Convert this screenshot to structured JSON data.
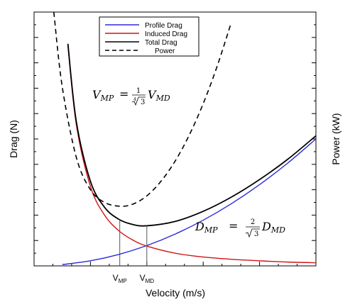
{
  "chart_data": {
    "type": "line",
    "xlabel": "Velocity (m/s)",
    "ylabel_left": "Drag (N)",
    "ylabel_right": "Power (kW)",
    "xlim": [
      0,
      10
    ],
    "ylim": [
      0,
      10
    ],
    "grid": false,
    "legend_position": "top-center",
    "series": [
      {
        "name": "Profile Drag",
        "color": "#2b2bd6",
        "style": "solid",
        "x": [
          1,
          2,
          3,
          4,
          5,
          6,
          7,
          8,
          9,
          10
        ],
        "values": [
          0.05,
          0.2,
          0.45,
          0.8,
          1.25,
          1.8,
          2.45,
          3.2,
          4.05,
          5.0
        ]
      },
      {
        "name": "Induced Drag",
        "color": "#d11414",
        "style": "solid",
        "x": [
          1.2,
          1.5,
          2,
          2.5,
          3,
          3.5,
          4,
          5,
          6,
          7,
          8,
          9,
          10
        ],
        "values": [
          8.68,
          5.56,
          3.13,
          2.0,
          1.39,
          1.02,
          0.78,
          0.5,
          0.35,
          0.26,
          0.2,
          0.15,
          0.125
        ]
      },
      {
        "name": "Total Drag",
        "color": "#000000",
        "style": "solid",
        "x": [
          1.2,
          1.5,
          2,
          2.5,
          3,
          3.5,
          4,
          5,
          6,
          7,
          8,
          9,
          10
        ],
        "values": [
          8.75,
          5.67,
          3.33,
          2.31,
          1.84,
          1.63,
          1.58,
          1.75,
          2.15,
          2.71,
          3.4,
          4.2,
          5.125
        ]
      },
      {
        "name": "Power",
        "color": "#000000",
        "style": "dashed",
        "x": [
          0.7,
          1.0,
          1.5,
          2.0,
          2.5,
          3.04,
          3.5,
          4.0,
          4.5,
          5.0,
          5.5,
          6.0,
          6.5,
          7.0
        ],
        "values": [
          10.0,
          7.05,
          4.27,
          3.0,
          2.5,
          2.35,
          2.43,
          2.76,
          3.33,
          4.12,
          5.14,
          6.39,
          7.88,
          9.6
        ]
      }
    ],
    "markers": [
      {
        "label": "V",
        "sub": "MP",
        "x": 3.04
      },
      {
        "label": "V",
        "sub": "MD",
        "x": 4.0
      }
    ],
    "annotations": {
      "vmp_formula": {
        "lhs": "V",
        "lhs_sub": "MP",
        "num": "1",
        "root_index": "4",
        "root_arg": "3",
        "rhs": "V",
        "rhs_sub": "MD"
      },
      "dmp_formula": {
        "lhs": "D",
        "lhs_sub": "MP",
        "num": "2",
        "root_arg": "3",
        "rhs": "D",
        "rhs_sub": "MD"
      }
    }
  }
}
